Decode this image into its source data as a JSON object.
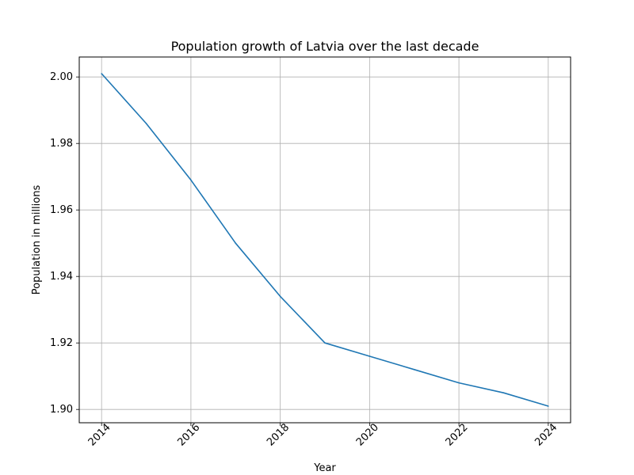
{
  "chart_data": {
    "type": "line",
    "title": "Population growth of Latvia over the last decade",
    "xlabel": "Year",
    "ylabel": "Population in millions",
    "x": [
      2014,
      2015,
      2016,
      2017,
      2018,
      2019,
      2020,
      2021,
      2022,
      2023,
      2024
    ],
    "series": [
      {
        "values": [
          2.001,
          1.986,
          1.969,
          1.95,
          1.934,
          1.92,
          1.916,
          1.912,
          1.908,
          1.905,
          1.901
        ],
        "color": "#1f77b4"
      }
    ],
    "xlim": [
      2013.5,
      2024.5
    ],
    "ylim": [
      1.896,
      2.006
    ],
    "xticks": [
      "2014",
      "2016",
      "2018",
      "2020",
      "2022",
      "2024"
    ],
    "yticks": [
      "1.90",
      "1.92",
      "1.94",
      "1.96",
      "1.98",
      "2.00"
    ],
    "grid": true,
    "x_tick_rotation": "45deg"
  }
}
